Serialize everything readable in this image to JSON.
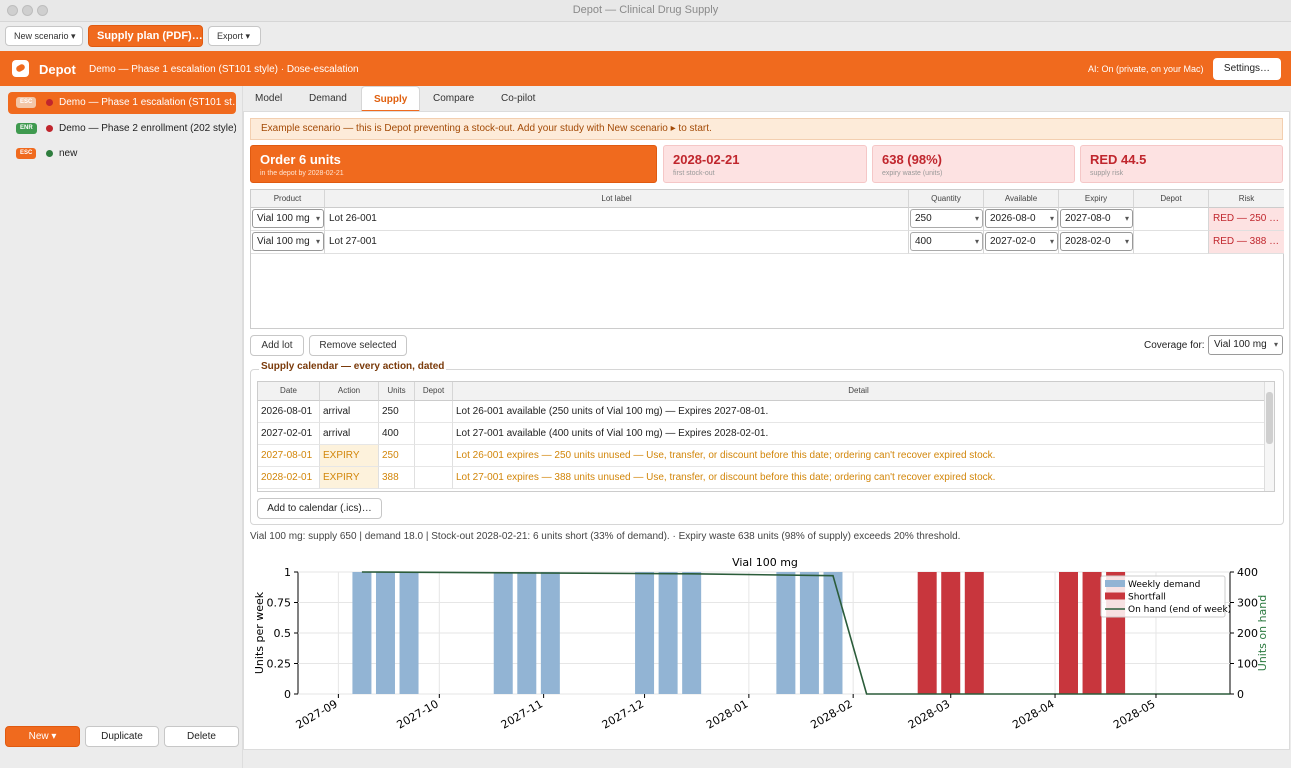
{
  "window": {
    "title": "Depot — Clinical Drug Supply"
  },
  "toolbar": {
    "new_scenario": "New scenario ▾",
    "supply_plan": "Supply plan (PDF)…",
    "export": "Export ▾"
  },
  "appbar": {
    "app_name": "Depot",
    "breadcrumb": "Demo — Phase 1 escalation (ST101 style)  ·  Dose-escalation",
    "ai_status": "AI: On (private, on your Mac)",
    "settings": "Settings…"
  },
  "sidebar": {
    "scenarios": [
      {
        "badge": "ESC",
        "label": "Demo — Phase 1 escalation (ST101 st…",
        "badge_color": "#e8e8e8",
        "dot_color": "#c0262d"
      },
      {
        "badge": "ENR",
        "label": "Demo — Phase 2 enrollment (202 style)",
        "badge_color": "#3f9a4f",
        "dot_color": "#c0262d"
      },
      {
        "badge": "ESC",
        "label": "new",
        "badge_color": "#f06a1e",
        "dot_color": "#2e7d3e"
      }
    ],
    "new_button": "New ▾",
    "duplicate_button": "Duplicate",
    "delete_button": "Delete"
  },
  "tabs": [
    "Model",
    "Demand",
    "Supply",
    "Compare",
    "Co-pilot"
  ],
  "active_tab": "Supply",
  "banner": "Example scenario — this is Depot preventing a stock-out. Add your study with New scenario ▸ to start.",
  "cards": [
    {
      "big": "Order 6 units",
      "small": "in the depot by 2028-02-21"
    },
    {
      "big": "2028-02-21",
      "small": "first stock-out"
    },
    {
      "big": "638 (98%)",
      "small": "expiry waste (units)"
    },
    {
      "big": "RED 44.5",
      "small": "supply risk"
    }
  ],
  "lots": {
    "headers": [
      "Product",
      "Lot label",
      "Quantity",
      "Available",
      "Expiry",
      "Depot",
      "Risk"
    ],
    "rows": [
      {
        "product": "Vial 100 mg",
        "lot": "Lot 26-001",
        "quantity": "250",
        "available": "2026-08-0",
        "expiry": "2027-08-0",
        "depot": "",
        "risk": "RED — 250 …"
      },
      {
        "product": "Vial 100 mg",
        "lot": "Lot 27-001",
        "quantity": "400",
        "available": "2027-02-0",
        "expiry": "2028-02-0",
        "depot": "",
        "risk": "RED — 388 …"
      }
    ]
  },
  "actions": {
    "add_lot": "Add lot",
    "remove_selected": "Remove selected",
    "coverage_label": "Coverage for:",
    "coverage_value": "Vial 100 mg"
  },
  "calendar": {
    "title": "Supply calendar — every action, dated",
    "headers": [
      "Date",
      "Action",
      "Units",
      "Depot",
      "Detail"
    ],
    "rows": [
      {
        "date": "2026-08-01",
        "action": "arrival",
        "units": "250",
        "depot": "",
        "detail": "Lot 26-001 available (250 units of Vial 100 mg) — Expires 2027-08-01.",
        "kind": "arrival"
      },
      {
        "date": "2027-02-01",
        "action": "arrival",
        "units": "400",
        "depot": "",
        "detail": "Lot 27-001 available (400 units of Vial 100 mg) — Expires 2028-02-01.",
        "kind": "arrival"
      },
      {
        "date": "2027-08-01",
        "action": "EXPIRY",
        "units": "250",
        "depot": "",
        "detail": "Lot 26-001 expires — 250 units unused — Use, transfer, or discount before this date; ordering can't recover expired stock.",
        "kind": "expiry"
      },
      {
        "date": "2028-02-01",
        "action": "EXPIRY",
        "units": "388",
        "depot": "",
        "detail": "Lot 27-001 expires — 388 units unused — Use, transfer, or discount before this date; ordering can't recover expired stock.",
        "kind": "expiry"
      }
    ],
    "add_to_calendar": "Add to calendar (.ics)…"
  },
  "summary": "Vial 100 mg:  supply 650  |  demand 18.0  |  Stock-out 2028-02-21: 6 units short (33% of demand).  ·  Expiry waste 638 units (98% of supply) exceeds 20% threshold.",
  "chart_data": {
    "type": "bar",
    "title": "Vial 100 mg",
    "ylabel": "Units per week",
    "y2label": "Units on hand",
    "ylim": [
      0,
      1
    ],
    "y2lim": [
      0,
      400
    ],
    "yticks": [
      "0",
      "0.25",
      "0.5",
      "0.75",
      "1"
    ],
    "y2ticks": [
      "0",
      "100",
      "200",
      "300",
      "400"
    ],
    "xlim": [
      "2027-08-20",
      "2028-05-23"
    ],
    "xticks": [
      "2027-09",
      "2027-10",
      "2027-11",
      "2027-12",
      "2028-01",
      "2028-02",
      "2028-03",
      "2028-04",
      "2028-05"
    ],
    "legend_position": "top-right",
    "series": [
      {
        "name": "Weekly demand",
        "color": "#92b4d4",
        "x": [
          "2027-09-08",
          "2027-09-15",
          "2027-09-22",
          "2027-10-20",
          "2027-10-27",
          "2027-11-03",
          "2027-12-01",
          "2027-12-08",
          "2027-12-15",
          "2028-01-12",
          "2028-01-19",
          "2028-01-26"
        ],
        "values": [
          1,
          1,
          1,
          1,
          1,
          1,
          1,
          1,
          1,
          1,
          1,
          1
        ]
      },
      {
        "name": "Shortfall",
        "color": "#c8363d",
        "x": [
          "2028-02-23",
          "2028-03-01",
          "2028-03-08",
          "2028-04-05",
          "2028-04-12",
          "2028-04-19"
        ],
        "values": [
          1,
          1,
          1,
          1,
          1,
          1
        ]
      },
      {
        "name": "On hand (end of week)",
        "color": "#2b5c3a",
        "x": [
          "2027-09-08",
          "2027-12-15",
          "2028-01-26",
          "2028-02-05",
          "2028-05-23"
        ],
        "values": [
          400,
          394,
          388,
          0,
          0
        ]
      }
    ]
  }
}
